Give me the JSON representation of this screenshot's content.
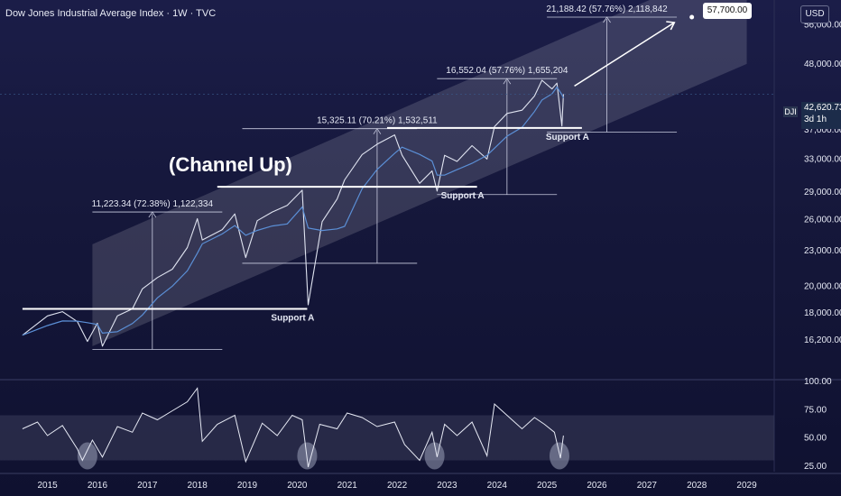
{
  "header": {
    "title": "Dow Jones Industrial Average Index · 1W · TVC",
    "currency": "USD"
  },
  "price_tag": {
    "symbol": "DJI",
    "value": "42,620.73",
    "countdown": "3d 1h"
  },
  "target_label": "57,700.00",
  "colors": {
    "background": "#15173a",
    "price_line": "#dfe3f0",
    "ma_line": "#5b8fd6",
    "channel_fill": "#ffffff",
    "rsi_band": "#3a3c5a"
  },
  "chart_data": [
    {
      "type": "line",
      "title": "",
      "x_ticks": [
        "2015",
        "2016",
        "2017",
        "2018",
        "2019",
        "2020",
        "2021",
        "2022",
        "2023",
        "2024",
        "2025",
        "2026",
        "2027",
        "2028",
        "2029"
      ],
      "y_ticks": [
        "16,200.00",
        "18,000.00",
        "20,000.00",
        "23,000.00",
        "26,000.00",
        "29,000.00",
        "33,000.00",
        "37,000.00",
        "42,620.73",
        "48,000.00",
        "56,000.00"
      ],
      "y_scale": "log",
      "series": [
        {
          "values_note": "weekly close",
          "points": [
            [
              "2014.5",
              16500
            ],
            [
              "2015.0",
              17800
            ],
            [
              "2015.3",
              18100
            ],
            [
              "2015.6",
              17400
            ],
            [
              "2015.8",
              16100
            ],
            [
              "2016.0",
              17300
            ],
            [
              "2016.1",
              15800
            ],
            [
              "2016.4",
              17800
            ],
            [
              "2016.7",
              18300
            ],
            [
              "2016.9",
              19800
            ],
            [
              "2017.2",
              20700
            ],
            [
              "2017.5",
              21400
            ],
            [
              "2017.8",
              23300
            ],
            [
              "2018.0",
              26100
            ],
            [
              "2018.1",
              24000
            ],
            [
              "2018.5",
              25000
            ],
            [
              "2018.75",
              26600
            ],
            [
              "2018.97",
              22400
            ],
            [
              "2019.2",
              25900
            ],
            [
              "2019.5",
              26800
            ],
            [
              "2019.8",
              27500
            ],
            [
              "2020.1",
              29200
            ],
            [
              "2020.22",
              18600
            ],
            [
              "2020.5",
              25800
            ],
            [
              "2020.8",
              28200
            ],
            [
              "2020.95",
              30400
            ],
            [
              "2021.3",
              33600
            ],
            [
              "2021.6",
              35000
            ],
            [
              "2021.95",
              36300
            ],
            [
              "2022.1",
              33500
            ],
            [
              "2022.45",
              30000
            ],
            [
              "2022.7",
              31500
            ],
            [
              "2022.8",
              29100
            ],
            [
              "2022.95",
              33500
            ],
            [
              "2023.2",
              32700
            ],
            [
              "2023.5",
              34800
            ],
            [
              "2023.8",
              33000
            ],
            [
              "2023.95",
              37500
            ],
            [
              "2024.2",
              39500
            ],
            [
              "2024.5",
              40000
            ],
            [
              "2024.75",
              42300
            ],
            [
              "2024.9",
              45000
            ],
            [
              "2025.1",
              43500
            ],
            [
              "2025.2",
              44500
            ],
            [
              "2025.3",
              37600
            ],
            [
              "2025.33",
              42620.73
            ]
          ]
        }
      ],
      "channel": {
        "lower": [
          [
            "2015.9",
            15800
          ],
          [
            "2029.0",
            48000
          ]
        ],
        "upper": [
          [
            "2015.9",
            23600
          ],
          [
            "2029.0",
            73000
          ]
        ]
      },
      "supports": [
        {
          "label": "Support A",
          "level": 18300,
          "x0": "2014.5",
          "x1": "2020.2"
        },
        {
          "label": "Support A",
          "level": 29600,
          "x0": "2018.4",
          "x1": "2023.6"
        },
        {
          "label": "Support A",
          "level": 37300,
          "x0": "2021.8",
          "x1": "2025.7"
        }
      ],
      "measures": [
        {
          "label": "11,223.34 (72.38%) 1,122,334",
          "from": 15600,
          "to": 26800,
          "x": "2017.1",
          "x0": "2015.9",
          "x1": "2018.5"
        },
        {
          "label": "15,325.11 (70.21%) 1,532,511",
          "from": 21900,
          "to": 37200,
          "x": "2021.6",
          "x0": "2018.9",
          "x1": "2022.4"
        },
        {
          "label": "16,552.04 (57.76%) 1,655,204",
          "from": 28700,
          "to": 45300,
          "x": "2024.2",
          "x0": "2022.8",
          "x1": "2025.2"
        },
        {
          "label": "21,188.42 (57.76%) 2,118,842",
          "from": 36700,
          "to": 57700,
          "x": "2026.2",
          "x0": "2025.0",
          "x1": "2027.6"
        }
      ],
      "annotations": [
        {
          "text": "(Channel Up)"
        }
      ],
      "target": 57700
    },
    {
      "type": "line",
      "title": "",
      "y_ticks": [
        "100.00",
        "75.00",
        "50.00",
        "25.00"
      ],
      "ylim": [
        20,
        100
      ],
      "bands": [
        [
          30,
          70
        ]
      ],
      "series": [
        {
          "values_note": "RSI",
          "points": [
            [
              "2014.5",
              58
            ],
            [
              "2014.8",
              64
            ],
            [
              "2015.0",
              52
            ],
            [
              "2015.3",
              61
            ],
            [
              "2015.6",
              40
            ],
            [
              "2015.7",
              30
            ],
            [
              "2015.9",
              48
            ],
            [
              "2016.1",
              33
            ],
            [
              "2016.4",
              60
            ],
            [
              "2016.7",
              55
            ],
            [
              "2016.9",
              72
            ],
            [
              "2017.2",
              66
            ],
            [
              "2017.5",
              74
            ],
            [
              "2017.8",
              82
            ],
            [
              "2018.0",
              94
            ],
            [
              "2018.1",
              47
            ],
            [
              "2018.4",
              62
            ],
            [
              "2018.75",
              70
            ],
            [
              "2018.97",
              29
            ],
            [
              "2019.3",
              63
            ],
            [
              "2019.6",
              52
            ],
            [
              "2019.9",
              70
            ],
            [
              "2020.1",
              66
            ],
            [
              "2020.22",
              24
            ],
            [
              "2020.45",
              62
            ],
            [
              "2020.8",
              58
            ],
            [
              "2021.0",
              72
            ],
            [
              "2021.3",
              68
            ],
            [
              "2021.6",
              60
            ],
            [
              "2021.95",
              64
            ],
            [
              "2022.15",
              44
            ],
            [
              "2022.45",
              30
            ],
            [
              "2022.7",
              55
            ],
            [
              "2022.8",
              33
            ],
            [
              "2022.95",
              62
            ],
            [
              "2023.2",
              52
            ],
            [
              "2023.5",
              64
            ],
            [
              "2023.8",
              34
            ],
            [
              "2023.95",
              80
            ],
            [
              "2024.3",
              66
            ],
            [
              "2024.5",
              58
            ],
            [
              "2024.75",
              68
            ],
            [
              "2024.95",
              62
            ],
            [
              "2025.15",
              55
            ],
            [
              "2025.27",
              32
            ],
            [
              "2025.33",
              52
            ]
          ]
        }
      ],
      "highlights": [
        "2015.8",
        "2020.2",
        "2022.75",
        "2025.25"
      ]
    }
  ]
}
